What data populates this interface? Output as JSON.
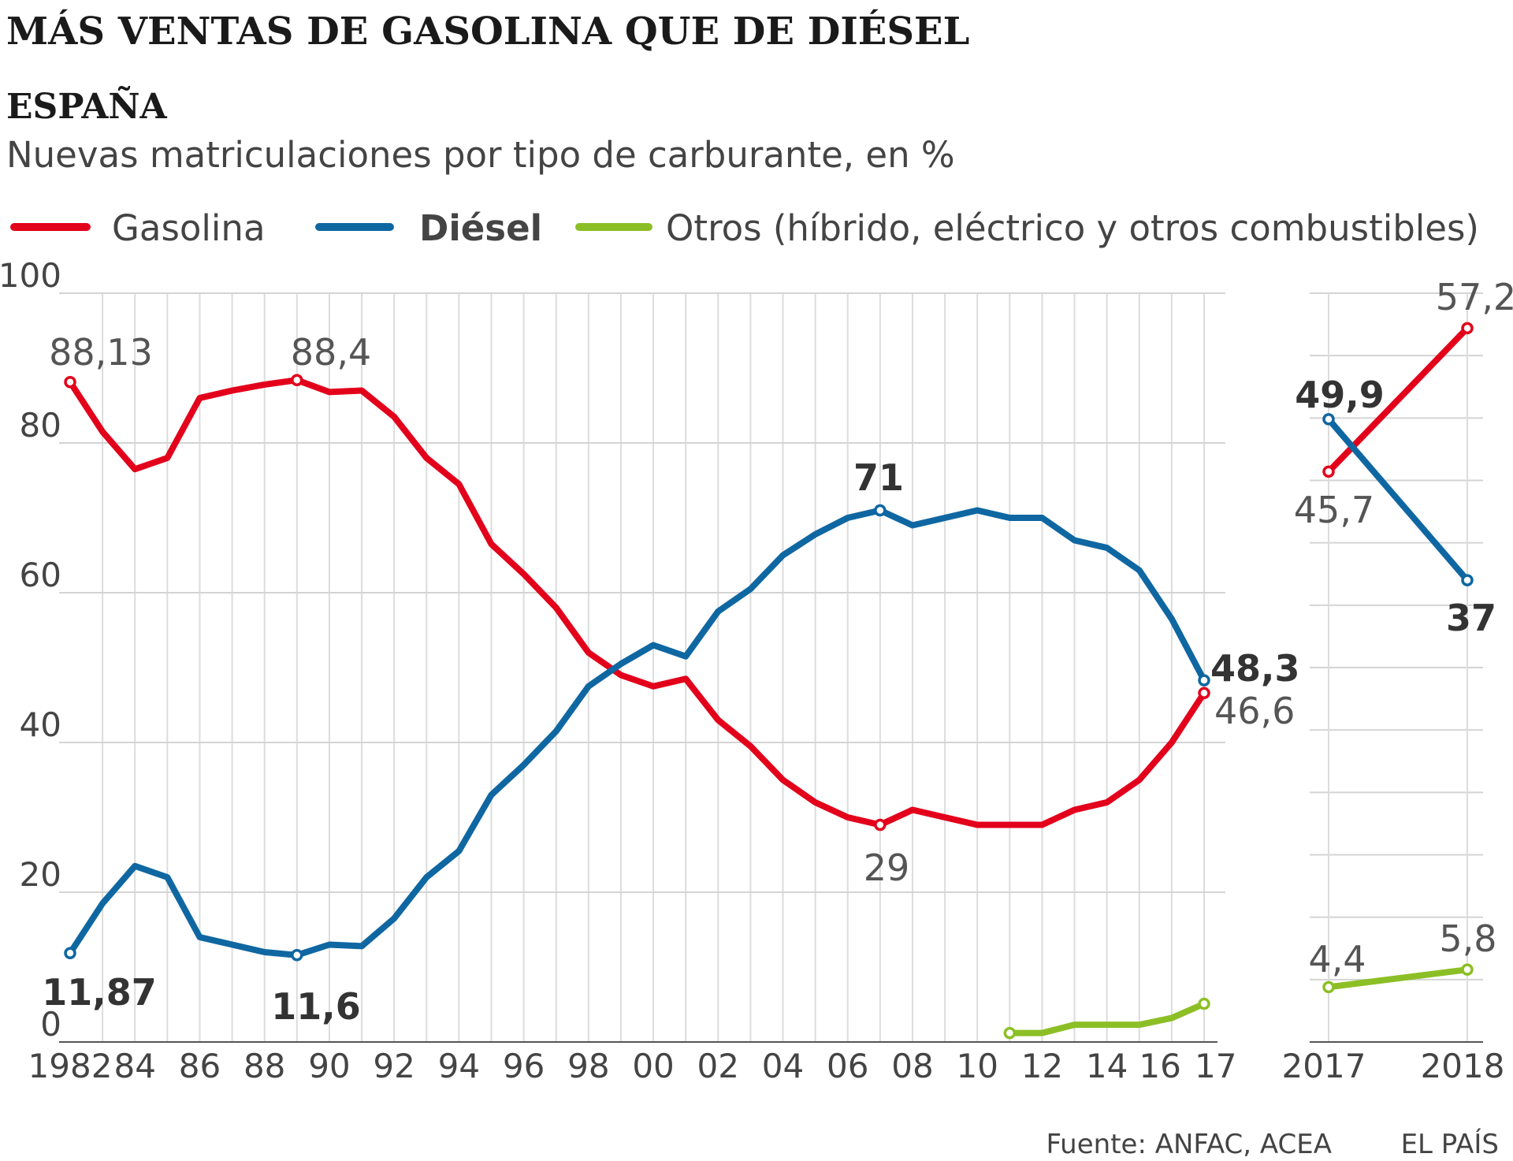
{
  "title": "MÁS VENTAS DE GASOLINA QUE DE DIÉSEL",
  "subtitle": "ESPAÑA",
  "description": "Nuevas matriculaciones por tipo de carburante, en %",
  "legend": [
    {
      "label": "Gasolina",
      "color": "#e3001b",
      "bold": false
    },
    {
      "label": "Diésel",
      "color": "#0f67a2",
      "bold": true
    },
    {
      "label": "Otros (híbrido, eléctrico y otros combustibles)",
      "color": "#8cbf26",
      "bold": false
    }
  ],
  "source": "Fuente: ANFAC, ACEA",
  "credit": "EL PAÍS",
  "chart_data": [
    {
      "type": "line",
      "x": [
        1982,
        1983,
        1984,
        1985,
        1986,
        1987,
        1988,
        1989,
        1990,
        1991,
        1992,
        1993,
        1994,
        1995,
        1996,
        1997,
        1998,
        1999,
        2000,
        2001,
        2002,
        2003,
        2004,
        2005,
        2006,
        2007,
        2008,
        2009,
        2010,
        2011,
        2012,
        2013,
        2014,
        2015,
        2016,
        2017
      ],
      "xtick_values": [
        1982,
        1984,
        1986,
        1988,
        1990,
        1992,
        1994,
        1996,
        1998,
        2000,
        2002,
        2004,
        2006,
        2008,
        2010,
        2012,
        2014,
        2016,
        2017
      ],
      "xtick_labels": [
        "1982",
        "84",
        "86",
        "88",
        "90",
        "92",
        "94",
        "96",
        "98",
        "00",
        "02",
        "04",
        "06",
        "08",
        "10",
        "12",
        "14",
        "16",
        "17"
      ],
      "yticks": [
        0,
        20,
        40,
        60,
        80,
        100
      ],
      "ylim": [
        0,
        100
      ],
      "series": [
        {
          "name": "Gasolina",
          "color": "#e3001b",
          "x": [
            1982,
            1983,
            1984,
            1985,
            1986,
            1987,
            1988,
            1989,
            1990,
            1991,
            1992,
            1993,
            1994,
            1995,
            1996,
            1997,
            1998,
            1999,
            2000,
            2001,
            2002,
            2003,
            2004,
            2005,
            2006,
            2007,
            2008,
            2009,
            2010,
            2011,
            2012,
            2013,
            2014,
            2015,
            2016,
            2017
          ],
          "values": [
            88.13,
            81.5,
            76.5,
            78,
            86,
            87,
            87.8,
            88.4,
            86.8,
            87,
            83.5,
            78,
            74.5,
            66.5,
            62.5,
            58,
            52,
            49,
            47.5,
            48.5,
            43,
            39.5,
            35,
            32,
            30,
            29,
            31,
            30,
            29,
            29,
            29,
            31,
            32,
            35,
            40,
            46.6
          ]
        },
        {
          "name": "Diésel",
          "color": "#0f67a2",
          "x": [
            1982,
            1983,
            1984,
            1985,
            1986,
            1987,
            1988,
            1989,
            1990,
            1991,
            1992,
            1993,
            1994,
            1995,
            1996,
            1997,
            1998,
            1999,
            2000,
            2001,
            2002,
            2003,
            2004,
            2005,
            2006,
            2007,
            2008,
            2009,
            2010,
            2011,
            2012,
            2013,
            2014,
            2015,
            2016,
            2017
          ],
          "values": [
            11.87,
            18.5,
            23.5,
            22,
            14,
            13,
            12,
            11.6,
            13,
            12.8,
            16.5,
            22,
            25.5,
            33,
            37,
            41.5,
            47.5,
            50.5,
            53,
            51.5,
            57.5,
            60.5,
            65,
            67.8,
            70,
            71,
            69,
            70,
            71,
            70,
            70,
            67,
            66,
            63,
            56.5,
            48.3
          ]
        },
        {
          "name": "Otros (híbrido, eléctrico y otros combustibles)",
          "color": "#8cbf26",
          "x": [
            2011,
            2012,
            2013,
            2014,
            2015,
            2016,
            2017
          ],
          "values": [
            1.2,
            1.2,
            2.3,
            2.3,
            2.3,
            3.2,
            5.1
          ]
        }
      ],
      "annotations": [
        {
          "text": "88,13",
          "bold": false
        },
        {
          "text": "88,4",
          "bold": false
        },
        {
          "text": "11,87",
          "bold": true
        },
        {
          "text": "11,6",
          "bold": true
        },
        {
          "text": "71",
          "bold": true
        },
        {
          "text": "29",
          "bold": false
        },
        {
          "text": "48,3",
          "bold": true
        },
        {
          "text": "46,6",
          "bold": false
        }
      ]
    },
    {
      "type": "line",
      "x": [
        2017,
        2018
      ],
      "xtick_labels": [
        "2017",
        "2018"
      ],
      "ylim": [
        0,
        60
      ],
      "series": [
        {
          "name": "Gasolina",
          "color": "#e3001b",
          "values": [
            45.7,
            57.2
          ]
        },
        {
          "name": "Diésel",
          "color": "#0f67a2",
          "values": [
            49.9,
            37
          ]
        },
        {
          "name": "Otros (híbrido, eléctrico y otros combustibles)",
          "color": "#8cbf26",
          "values": [
            4.4,
            5.8
          ]
        }
      ],
      "annotations": [
        {
          "text": "49,9",
          "bold": true
        },
        {
          "text": "45,7",
          "bold": false
        },
        {
          "text": "57,2",
          "bold": false
        },
        {
          "text": "37",
          "bold": true
        },
        {
          "text": "4,4",
          "bold": false
        },
        {
          "text": "5,8",
          "bold": false
        }
      ]
    }
  ]
}
